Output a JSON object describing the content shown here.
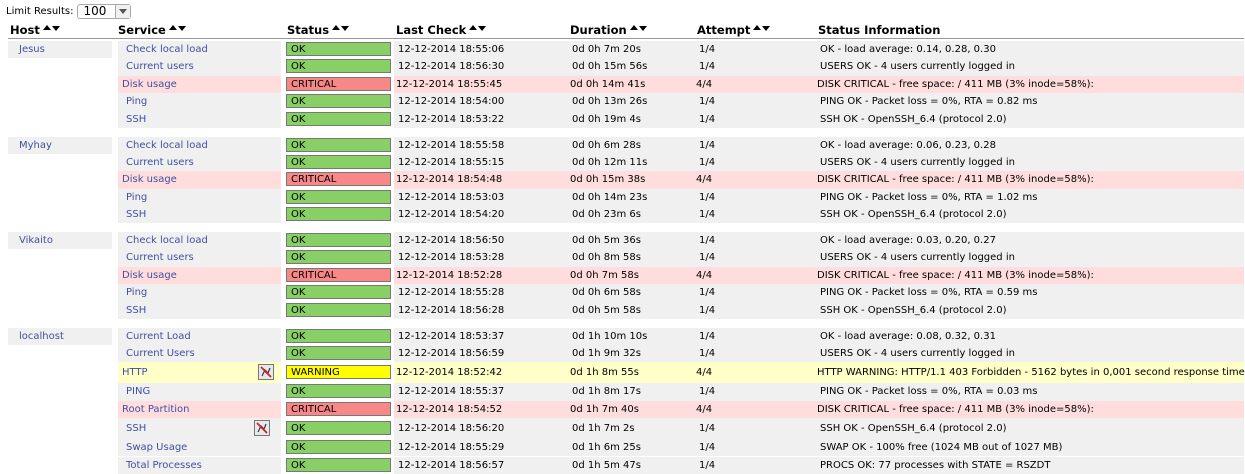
{
  "limit": {
    "label": "Limit Results:",
    "value": "100"
  },
  "headers": [
    "Host",
    "Service",
    "Status",
    "Last Check",
    "Duration",
    "Attempt",
    "Status Information"
  ],
  "colors": {
    "ok": "#88d066",
    "critical": "#f88888",
    "warning": "#ffff00",
    "row_normal": "#f0f0f0",
    "row_critical": "#ffdddd",
    "row_warning": "#ffffc8",
    "link": "#4050a0"
  },
  "hosts": [
    {
      "name": "Jesus",
      "services": [
        {
          "service": "Check local load",
          "status": "OK",
          "last_check": "12-12-2014 18:55:06",
          "duration": "0d 0h 7m 20s",
          "attempt": "1/4",
          "info": "OK - load average: 0.14, 0.28, 0.30"
        },
        {
          "service": "Current users",
          "status": "OK",
          "last_check": "12-12-2014 18:56:30",
          "duration": "0d 0h 15m 56s",
          "attempt": "1/4",
          "info": "USERS OK - 4 users currently logged in"
        },
        {
          "service": "Disk usage",
          "status": "CRITICAL",
          "last_check": "12-12-2014 18:55:45",
          "duration": "0d 0h 14m 41s",
          "attempt": "4/4",
          "info": "DISK CRITICAL - free space: / 411 MB (3% inode=58%):"
        },
        {
          "service": "Ping",
          "status": "OK",
          "last_check": "12-12-2014 18:54:00",
          "duration": "0d 0h 13m 26s",
          "attempt": "1/4",
          "info": "PING OK - Packet loss = 0%, RTA = 0.82 ms"
        },
        {
          "service": "SSH",
          "status": "OK",
          "last_check": "12-12-2014 18:53:22",
          "duration": "0d 0h 19m 4s",
          "attempt": "1/4",
          "info": "SSH OK - OpenSSH_6.4 (protocol 2.0)"
        }
      ]
    },
    {
      "name": "Myhay",
      "services": [
        {
          "service": "Check local load",
          "status": "OK",
          "last_check": "12-12-2014 18:55:58",
          "duration": "0d 0h 6m 28s",
          "attempt": "1/4",
          "info": "OK - load average: 0.06, 0.23, 0.28"
        },
        {
          "service": "Current users",
          "status": "OK",
          "last_check": "12-12-2014 18:55:15",
          "duration": "0d 0h 12m 11s",
          "attempt": "1/4",
          "info": "USERS OK - 4 users currently logged in"
        },
        {
          "service": "Disk usage",
          "status": "CRITICAL",
          "last_check": "12-12-2014 18:54:48",
          "duration": "0d 0h 15m 38s",
          "attempt": "4/4",
          "info": "DISK CRITICAL - free space: / 411 MB (3% inode=58%):"
        },
        {
          "service": "Ping",
          "status": "OK",
          "last_check": "12-12-2014 18:53:03",
          "duration": "0d 0h 14m 23s",
          "attempt": "1/4",
          "info": "PING OK - Packet loss = 0%, RTA = 1.02 ms"
        },
        {
          "service": "SSH",
          "status": "OK",
          "last_check": "12-12-2014 18:54:20",
          "duration": "0d 0h 23m 6s",
          "attempt": "1/4",
          "info": "SSH OK - OpenSSH_6.4 (protocol 2.0)"
        }
      ]
    },
    {
      "name": "Vikaito",
      "services": [
        {
          "service": "Check local load",
          "status": "OK",
          "last_check": "12-12-2014 18:56:50",
          "duration": "0d 0h 5m 36s",
          "attempt": "1/4",
          "info": "OK - load average: 0.03, 0.20, 0.27"
        },
        {
          "service": "Current users",
          "status": "OK",
          "last_check": "12-12-2014 18:53:28",
          "duration": "0d 0h 8m 58s",
          "attempt": "1/4",
          "info": "USERS OK - 4 users currently logged in"
        },
        {
          "service": "Disk usage",
          "status": "CRITICAL",
          "last_check": "12-12-2014 18:52:28",
          "duration": "0d 0h 7m 58s",
          "attempt": "4/4",
          "info": "DISK CRITICAL - free space: / 411 MB (3% inode=58%):"
        },
        {
          "service": "Ping",
          "status": "OK",
          "last_check": "12-12-2014 18:55:28",
          "duration": "0d 0h 6m 58s",
          "attempt": "1/4",
          "info": "PING OK - Packet loss = 0%, RTA = 0.59 ms"
        },
        {
          "service": "SSH",
          "status": "OK",
          "last_check": "12-12-2014 18:56:28",
          "duration": "0d 0h 5m 58s",
          "attempt": "1/4",
          "info": "SSH OK - OpenSSH_6.4 (protocol 2.0)"
        }
      ]
    },
    {
      "name": "localhost",
      "services": [
        {
          "service": "Current Load",
          "status": "OK",
          "last_check": "12-12-2014 18:53:37",
          "duration": "0d 1h 10m 10s",
          "attempt": "1/4",
          "info": "OK - load average: 0.08, 0.32, 0.31"
        },
        {
          "service": "Current Users",
          "status": "OK",
          "last_check": "12-12-2014 18:56:59",
          "duration": "0d 1h 9m 32s",
          "attempt": "1/4",
          "info": "USERS OK - 4 users currently logged in"
        },
        {
          "service": "HTTP",
          "status": "WARNING",
          "last_check": "12-12-2014 18:52:42",
          "duration": "0d 1h 8m 55s",
          "attempt": "4/4",
          "info": "HTTP WARNING: HTTP/1.1 403 Forbidden - 5162 bytes in 0,001 second response time",
          "icon": "notifications-disabled-icon"
        },
        {
          "service": "PING",
          "status": "OK",
          "last_check": "12-12-2014 18:55:37",
          "duration": "0d 1h 8m 17s",
          "attempt": "1/4",
          "info": "PING OK - Packet loss = 0%, RTA = 0.03 ms"
        },
        {
          "service": "Root Partition",
          "status": "CRITICAL",
          "last_check": "12-12-2014 18:54:52",
          "duration": "0d 1h 7m 40s",
          "attempt": "4/4",
          "info": "DISK CRITICAL - free space: / 411 MB (3% inode=58%):"
        },
        {
          "service": "SSH",
          "status": "OK",
          "last_check": "12-12-2014 18:56:20",
          "duration": "0d 1h 7m 2s",
          "attempt": "1/4",
          "info": "SSH OK - OpenSSH_6.4 (protocol 2.0)",
          "icon": "notifications-disabled-icon"
        },
        {
          "service": "Swap Usage",
          "status": "OK",
          "last_check": "12-12-2014 18:55:29",
          "duration": "0d 1h 6m 25s",
          "attempt": "1/4",
          "info": "SWAP OK - 100% free (1024 MB out of 1027 MB)"
        },
        {
          "service": "Total Processes",
          "status": "OK",
          "last_check": "12-12-2014 18:56:57",
          "duration": "0d 1h 5m 47s",
          "attempt": "1/4",
          "info": "PROCS OK: 77 processes with STATE = RSZDT"
        }
      ]
    }
  ]
}
